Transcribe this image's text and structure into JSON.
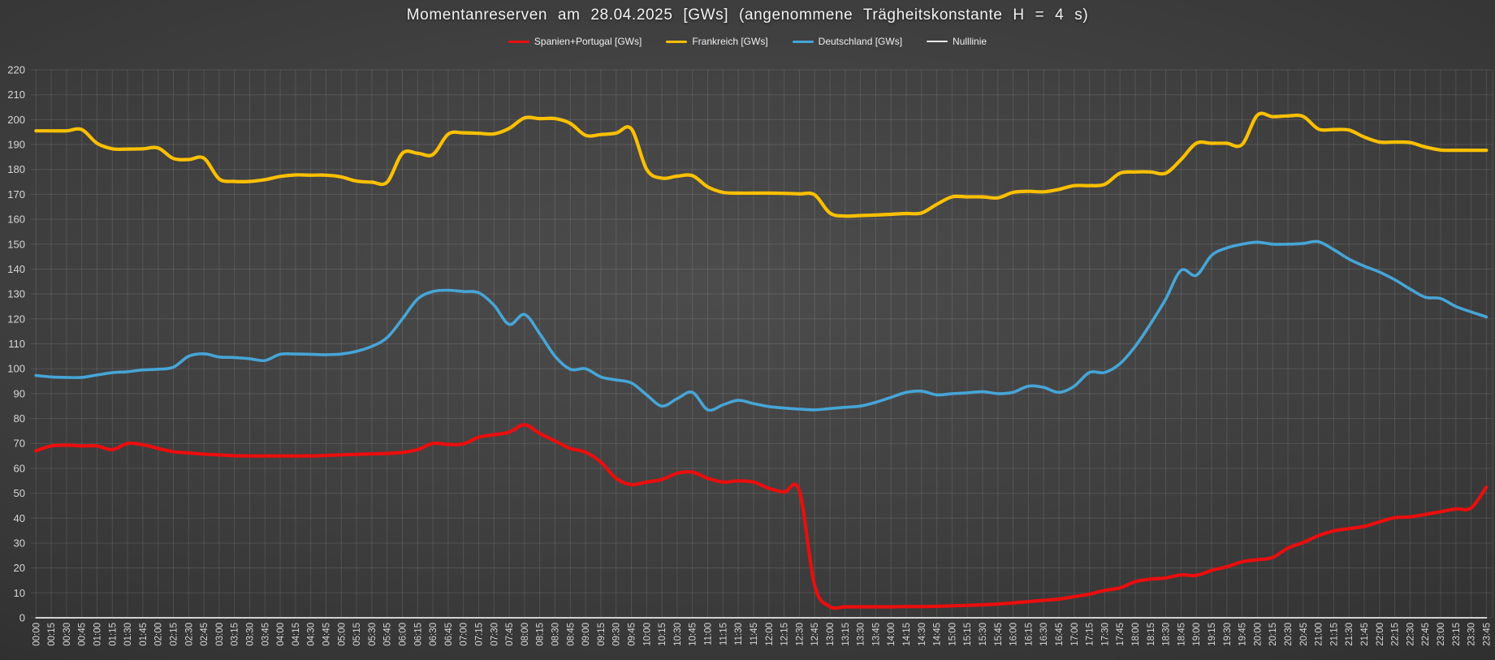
{
  "title": "Momentanreserven am 28.04.2025 [GWs] (angenommene Trägheitskonstante H = 4 s)",
  "colors": {
    "background_center": "#4c4c4c",
    "background_edge": "#181818",
    "gridline": "rgba(255,255,255,0.11)",
    "axis_text": "#d6d6d6",
    "title_text": "#f2f2f2",
    "spanien_portugal": "#ea0e0e",
    "frankreich": "#fcc000",
    "deutschland": "#46a5d7",
    "nulllinie": "#e8e8e8"
  },
  "chart_data": {
    "type": "line",
    "title": "Momentanreserven am 28.04.2025 [GWs] (angenommene Trägheitskonstante H = 4 s)",
    "xlabel": "",
    "ylabel": "",
    "ylim": [
      0,
      220
    ],
    "y_tick_step": 10,
    "grid": true,
    "legend_position": "top",
    "x_label_rotation": -90,
    "x": [
      "00:00",
      "00:15",
      "00:30",
      "00:45",
      "01:00",
      "01:15",
      "01:30",
      "01:45",
      "02:00",
      "02:15",
      "02:30",
      "02:45",
      "03:00",
      "03:15",
      "03:30",
      "03:45",
      "04:00",
      "04:15",
      "04:30",
      "04:45",
      "05:00",
      "05:15",
      "05:30",
      "05:45",
      "06:00",
      "06:15",
      "06:30",
      "06:45",
      "07:00",
      "07:15",
      "07:30",
      "07:45",
      "08:00",
      "08:15",
      "08:30",
      "08:45",
      "09:00",
      "09:15",
      "09:30",
      "09:45",
      "10:00",
      "10:15",
      "10:30",
      "10:45",
      "11:00",
      "11:15",
      "11:30",
      "11:45",
      "12:00",
      "12:15",
      "12:30",
      "12:45",
      "13:00",
      "13:15",
      "13:30",
      "13:45",
      "14:00",
      "14:15",
      "14:30",
      "14:45",
      "15:00",
      "15:15",
      "15:30",
      "15:45",
      "16:00",
      "16:15",
      "16:30",
      "16:45",
      "17:00",
      "17:15",
      "17:30",
      "17:45",
      "18:00",
      "18:15",
      "18:30",
      "18:45",
      "19:00",
      "19:15",
      "19:30",
      "19:45",
      "20:00",
      "20:15",
      "20:30",
      "20:45",
      "21:00",
      "21:15",
      "21:30",
      "21:45",
      "22:00",
      "22:15",
      "22:30",
      "22:45",
      "23:00",
      "23:15",
      "23:30",
      "23:45"
    ],
    "series": [
      {
        "name": "Spanien+Portugal [GWs]",
        "color": "#ea0e0e",
        "line_width": 4.2,
        "smooth": true,
        "values": [
          67,
          69,
          69.3,
          69,
          69,
          67.5,
          70,
          69.5,
          68,
          66.7,
          66.2,
          65.7,
          65.4,
          65.1,
          65,
          65,
          65,
          65,
          65,
          65.2,
          65.4,
          65.6,
          65.8,
          66,
          66.4,
          67.5,
          70,
          69.6,
          69.8,
          72.5,
          73.5,
          74.5,
          77.5,
          74,
          71,
          68,
          66.5,
          62.5,
          56,
          53.5,
          54.5,
          55.5,
          58,
          58.5,
          56,
          54.5,
          55,
          54.5,
          52,
          50.5,
          51,
          13,
          4.5,
          4.4,
          4.4,
          4.4,
          4.4,
          4.5,
          4.5,
          4.6,
          4.8,
          5,
          5.2,
          5.5,
          6,
          6.5,
          7,
          7.5,
          8.5,
          9.5,
          11,
          12,
          14.5,
          15.5,
          16,
          17.2,
          17,
          19,
          20.5,
          22.5,
          23.3,
          24.2,
          28,
          30.2,
          33,
          34.9,
          35.8,
          36.7,
          38.5,
          40.2,
          40.5,
          41.5,
          42.6,
          43.7,
          44.1,
          52.5
        ]
      },
      {
        "name": "Frankreich [GWs]",
        "color": "#fcc000",
        "line_width": 4.2,
        "smooth": true,
        "values": [
          195.5,
          195.5,
          195.5,
          196,
          190.5,
          188.3,
          188.2,
          188.3,
          188.6,
          184.4,
          184,
          184.5,
          176.2,
          175.2,
          175.2,
          175.9,
          177.2,
          177.8,
          177.7,
          177.7,
          177,
          175.3,
          174.9,
          174.9,
          186.5,
          186.5,
          186,
          194.2,
          194.7,
          194.5,
          194.3,
          196.5,
          200.7,
          200.4,
          200.4,
          198.5,
          193.7,
          194,
          194.6,
          196.3,
          180,
          176.5,
          177.3,
          177.5,
          173,
          170.8,
          170.5,
          170.5,
          170.5,
          170.4,
          170.2,
          169.8,
          162.5,
          161.3,
          161.5,
          161.7,
          162,
          162.3,
          162.5,
          166,
          169,
          169,
          169,
          168.6,
          170.8,
          171.2,
          171,
          172,
          173.5,
          173.5,
          174,
          178.5,
          179,
          179,
          178.5,
          184,
          190.5,
          190.5,
          190.5,
          190,
          201.8,
          201.2,
          201.5,
          201.3,
          196.2,
          196,
          195.8,
          193,
          191,
          191,
          190.8,
          189,
          187.8,
          187.7,
          187.7,
          187.7
        ]
      },
      {
        "name": "Deutschland [GWs]",
        "color": "#46a5d7",
        "line_width": 3.6,
        "smooth": true,
        "values": [
          97.3,
          96.7,
          96.5,
          96.5,
          97.5,
          98.4,
          98.8,
          99.5,
          99.8,
          100.6,
          105,
          106,
          104.7,
          104.5,
          104,
          103.3,
          105.8,
          105.9,
          105.8,
          105.6,
          105.9,
          107,
          109,
          112.5,
          120,
          128,
          131,
          131.5,
          131,
          130.5,
          125.5,
          117.8,
          121.8,
          114,
          105,
          99.8,
          100,
          96.7,
          95.5,
          94.3,
          89.5,
          85,
          88,
          90.5,
          83.5,
          85.5,
          87.3,
          86,
          84.8,
          84.2,
          83.8,
          83.5,
          84,
          84.5,
          85,
          86.5,
          88.5,
          90.5,
          91,
          89.5,
          90,
          90.3,
          90.8,
          90,
          90.5,
          93,
          92.5,
          90.5,
          93,
          98.5,
          98.5,
          102,
          109,
          118,
          128,
          139.5,
          137.5,
          145.5,
          148.5,
          150,
          150.8,
          150,
          150,
          150.3,
          151,
          147.8,
          144,
          141.2,
          138.8,
          135.7,
          132,
          128.7,
          128.2,
          125,
          122.8,
          120.8
        ]
      },
      {
        "name": "Nulllinie",
        "color": "#e8e8e8",
        "line_width": 1.8,
        "smooth": false,
        "constant": 0
      }
    ]
  }
}
